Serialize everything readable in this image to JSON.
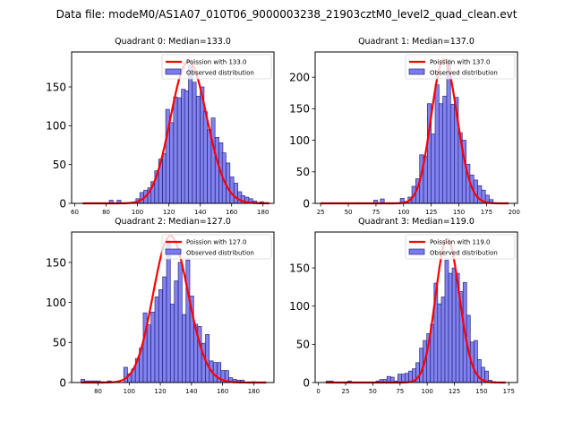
{
  "figure": {
    "suptitle": "Data file: modeM0/AS1A07_010T06_9000003238_21903cztM0_level2_quad_clean.evt"
  },
  "colors": {
    "bar_fill": "#7b7bf0",
    "bar_edge": "#2a2a7a",
    "poisson_line": "#ff0000"
  },
  "chart_data": [
    {
      "type": "bar",
      "title": "Quadrant 0: Median=133.0",
      "xlabel": "",
      "ylabel": "",
      "xlim": [
        58,
        187
      ],
      "ylim": [
        0,
        195
      ],
      "xticks": [
        60,
        80,
        100,
        120,
        140,
        160,
        180
      ],
      "yticks": [
        0,
        50,
        100,
        150
      ],
      "grid": false,
      "legend": {
        "placement": "top-right",
        "entries": [
          "Poission with 133.0",
          "Observed distribution"
        ]
      },
      "bin_width": 2.42,
      "bins_start": [
        82,
        87,
        99,
        101.5,
        104,
        106.5,
        108.5,
        111,
        113.5,
        116,
        118,
        120.5,
        123,
        125.5,
        128,
        130,
        132.5,
        135,
        137.5,
        140,
        142,
        144.5,
        147,
        149.5,
        152,
        154,
        156.5,
        159,
        161.5,
        164,
        166,
        168.5,
        171,
        173.5,
        176,
        178,
        181
      ],
      "counts": [
        4,
        4,
        6,
        14,
        17,
        20,
        28,
        42,
        57,
        64,
        121,
        104,
        137,
        136,
        147,
        145,
        178,
        156,
        138,
        150,
        118,
        95,
        110,
        85,
        78,
        65,
        52,
        34,
        26,
        15,
        10,
        8,
        6,
        3,
        1,
        2,
        1
      ],
      "poisson": {
        "mean": 133.0,
        "peak": 183,
        "x_range": [
          65,
          184
        ]
      }
    },
    {
      "type": "bar",
      "title": "Quadrant 1: Median=137.0",
      "xlabel": "",
      "ylabel": "",
      "xlim": [
        20,
        203
      ],
      "ylim": [
        0,
        240
      ],
      "xticks": [
        25,
        50,
        75,
        100,
        125,
        150,
        175,
        200
      ],
      "yticks": [
        0,
        50,
        100,
        150,
        200
      ],
      "grid": false,
      "legend": {
        "placement": "top-right",
        "entries": [
          "Poission with 137.0",
          "Observed distribution"
        ]
      },
      "bin_width": 3.5,
      "bins_start": [
        57,
        73,
        79,
        97,
        100.5,
        104,
        107.5,
        111,
        114.5,
        118,
        121.5,
        125,
        128.5,
        132,
        135.5,
        139,
        142.5,
        146,
        149.5,
        153,
        156.5,
        160,
        163.5,
        167,
        170.5,
        174,
        177.5
      ],
      "counts": [
        1,
        5,
        7,
        8,
        3,
        10,
        27,
        39,
        77,
        75,
        158,
        110,
        188,
        158,
        170,
        228,
        157,
        168,
        112,
        100,
        62,
        45,
        37,
        28,
        21,
        13,
        6
      ],
      "poisson": {
        "mean": 137.0,
        "peak": 228,
        "x_range": [
          25,
          195
        ]
      }
    },
    {
      "type": "bar",
      "title": "Quadrant 2: Median=127.0",
      "xlabel": "",
      "ylabel": "",
      "xlim": [
        63,
        193
      ],
      "ylim": [
        0,
        188
      ],
      "xticks": [
        80,
        100,
        120,
        140,
        160,
        180
      ],
      "yticks": [
        0,
        50,
        100,
        150
      ],
      "grid": false,
      "legend": {
        "placement": "top-right",
        "entries": [
          "Poission with 127.0",
          "Observed distribution"
        ]
      },
      "bin_width": 2.42,
      "bins_start": [
        69,
        71.5,
        74,
        76.5,
        79,
        81.5,
        86,
        96.5,
        99,
        101.5,
        104,
        106.5,
        109,
        111.5,
        114,
        116.5,
        119,
        121.5,
        124,
        126.5,
        129,
        131.5,
        134,
        136.5,
        139,
        141.5,
        144,
        146.5,
        149,
        151.5,
        154,
        156.5,
        159,
        161.5,
        164,
        166.5,
        169,
        171.5,
        178.5
      ],
      "counts": [
        4,
        2,
        2,
        2,
        2,
        1,
        2,
        19,
        11,
        17,
        30,
        43,
        87,
        72,
        88,
        107,
        116,
        132,
        177,
        98,
        127,
        150,
        85,
        153,
        108,
        73,
        70,
        49,
        60,
        27,
        25,
        25,
        15,
        15,
        6,
        4,
        3,
        3,
        1
      ],
      "poisson": {
        "mean": 127.0,
        "peak": 183,
        "x_range": [
          69,
          188
        ]
      }
    },
    {
      "type": "bar",
      "title": "Quadrant 3: Median=119.0",
      "xlabel": "",
      "ylabel": "",
      "xlim": [
        -3,
        183
      ],
      "ylim": [
        0,
        197
      ],
      "xticks": [
        0,
        25,
        50,
        75,
        100,
        125,
        150,
        175
      ],
      "yticks": [
        0,
        50,
        100,
        150
      ],
      "grid": false,
      "legend": {
        "placement": "top-right",
        "entries": [
          "Poission with 119.0",
          "Observed distribution"
        ]
      },
      "bin_width": 3.3,
      "bins_start": [
        7,
        10.3,
        27,
        53,
        56.3,
        59.6,
        63,
        66.3,
        69.6,
        73,
        76.3,
        79.6,
        83,
        86.3,
        89.6,
        93,
        96.3,
        99.6,
        103,
        106.3,
        109.6,
        113,
        116.3,
        119.6,
        123,
        126.3,
        129.6,
        133,
        136.3,
        139.6,
        143,
        146.3,
        149.6,
        153,
        156.3,
        159.6
      ],
      "counts": [
        2,
        2,
        2,
        2,
        4,
        4,
        8,
        7,
        2,
        11,
        11,
        12,
        15,
        18,
        26,
        45,
        55,
        64,
        76,
        130,
        103,
        112,
        160,
        143,
        150,
        143,
        119,
        131,
        88,
        53,
        55,
        30,
        20,
        15,
        3,
        1
      ],
      "poisson": {
        "mean": 119.0,
        "peak": 188,
        "x_range": [
          7,
          172
        ]
      }
    }
  ]
}
